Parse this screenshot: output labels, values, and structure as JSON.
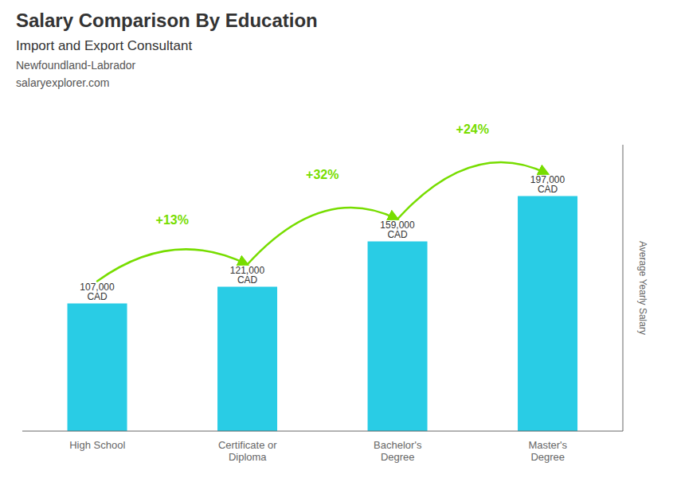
{
  "chart_data": {
    "type": "bar",
    "title": "Salary Comparison By Education",
    "subtitle": "Import and Export Consultant",
    "ylabel": "Average Yearly Salary",
    "categories": [
      "High School",
      "Certificate or\nDiploma",
      "Bachelor's\nDegree",
      "Master's\nDegree"
    ],
    "values": [
      107000,
      121000,
      159000,
      197000
    ],
    "value_labels": [
      "107,000 CAD",
      "121,000 CAD",
      "159,000 CAD",
      "197,000 CAD"
    ],
    "data_labels": true,
    "color": "#29CCE5",
    "ylim": [
      0,
      240000
    ],
    "tick_labels": "x",
    "grid": false,
    "annotations": [
      {
        "text": "Newfoundland-Labrador"
      },
      {
        "text": "salaryexplorer.com"
      },
      {
        "text": "+13%",
        "from": "High School",
        "to": "Certificate or\nDiploma",
        "color": "#77DD00"
      },
      {
        "text": "+32%",
        "from": "Certificate or\nDiploma",
        "to": "Bachelor's\nDegree",
        "color": "#77DD00"
      },
      {
        "text": "+24%",
        "from": "Bachelor's\nDegree",
        "to": "Master's\nDegree",
        "color": "#77DD00"
      }
    ]
  }
}
